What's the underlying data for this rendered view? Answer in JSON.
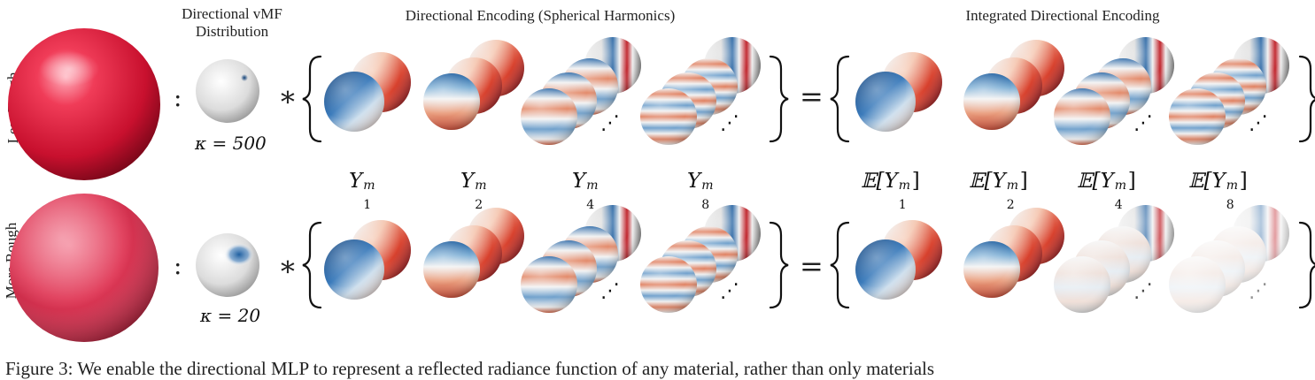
{
  "headers": {
    "vmf_line1": "Directional vMF",
    "vmf_line2": "Distribution",
    "directional_encoding": "Directional Encoding (Spherical Harmonics)",
    "integrated_encoding": "Integrated Directional Encoding"
  },
  "rows": [
    {
      "label": "Less Rough",
      "kappa": "κ = 500"
    },
    {
      "label": "More Rough",
      "kappa": "κ = 20"
    }
  ],
  "operators": {
    "colon": ":",
    "convolve": "∗",
    "equals": "=",
    "ellipsis": "⋰"
  },
  "sh_labels": [
    {
      "base": "Y",
      "sup": "m",
      "sub": "1"
    },
    {
      "base": "Y",
      "sup": "m",
      "sub": "2"
    },
    {
      "base": "Y",
      "sup": "m",
      "sub": "4"
    },
    {
      "base": "Y",
      "sup": "m",
      "sub": "8"
    }
  ],
  "ide_labels": [
    {
      "base": "𝔼[Y",
      "sup": "m",
      "sub": "1",
      "end": "]"
    },
    {
      "base": "𝔼[Y",
      "sup": "m",
      "sub": "2",
      "end": "]"
    },
    {
      "base": "𝔼[Y",
      "sup": "m",
      "sub": "4",
      "end": "]"
    },
    {
      "base": "𝔼[Y",
      "sup": "m",
      "sub": "8",
      "end": "]"
    }
  ],
  "caption": "Figure 3:  We enable the directional MLP to represent a reflected radiance function of any material, rather than only materials",
  "colors": {
    "material": "#d8203c",
    "blue": "#1f5fa0",
    "red": "#c0222a",
    "neutral": "#e8e8e8"
  }
}
